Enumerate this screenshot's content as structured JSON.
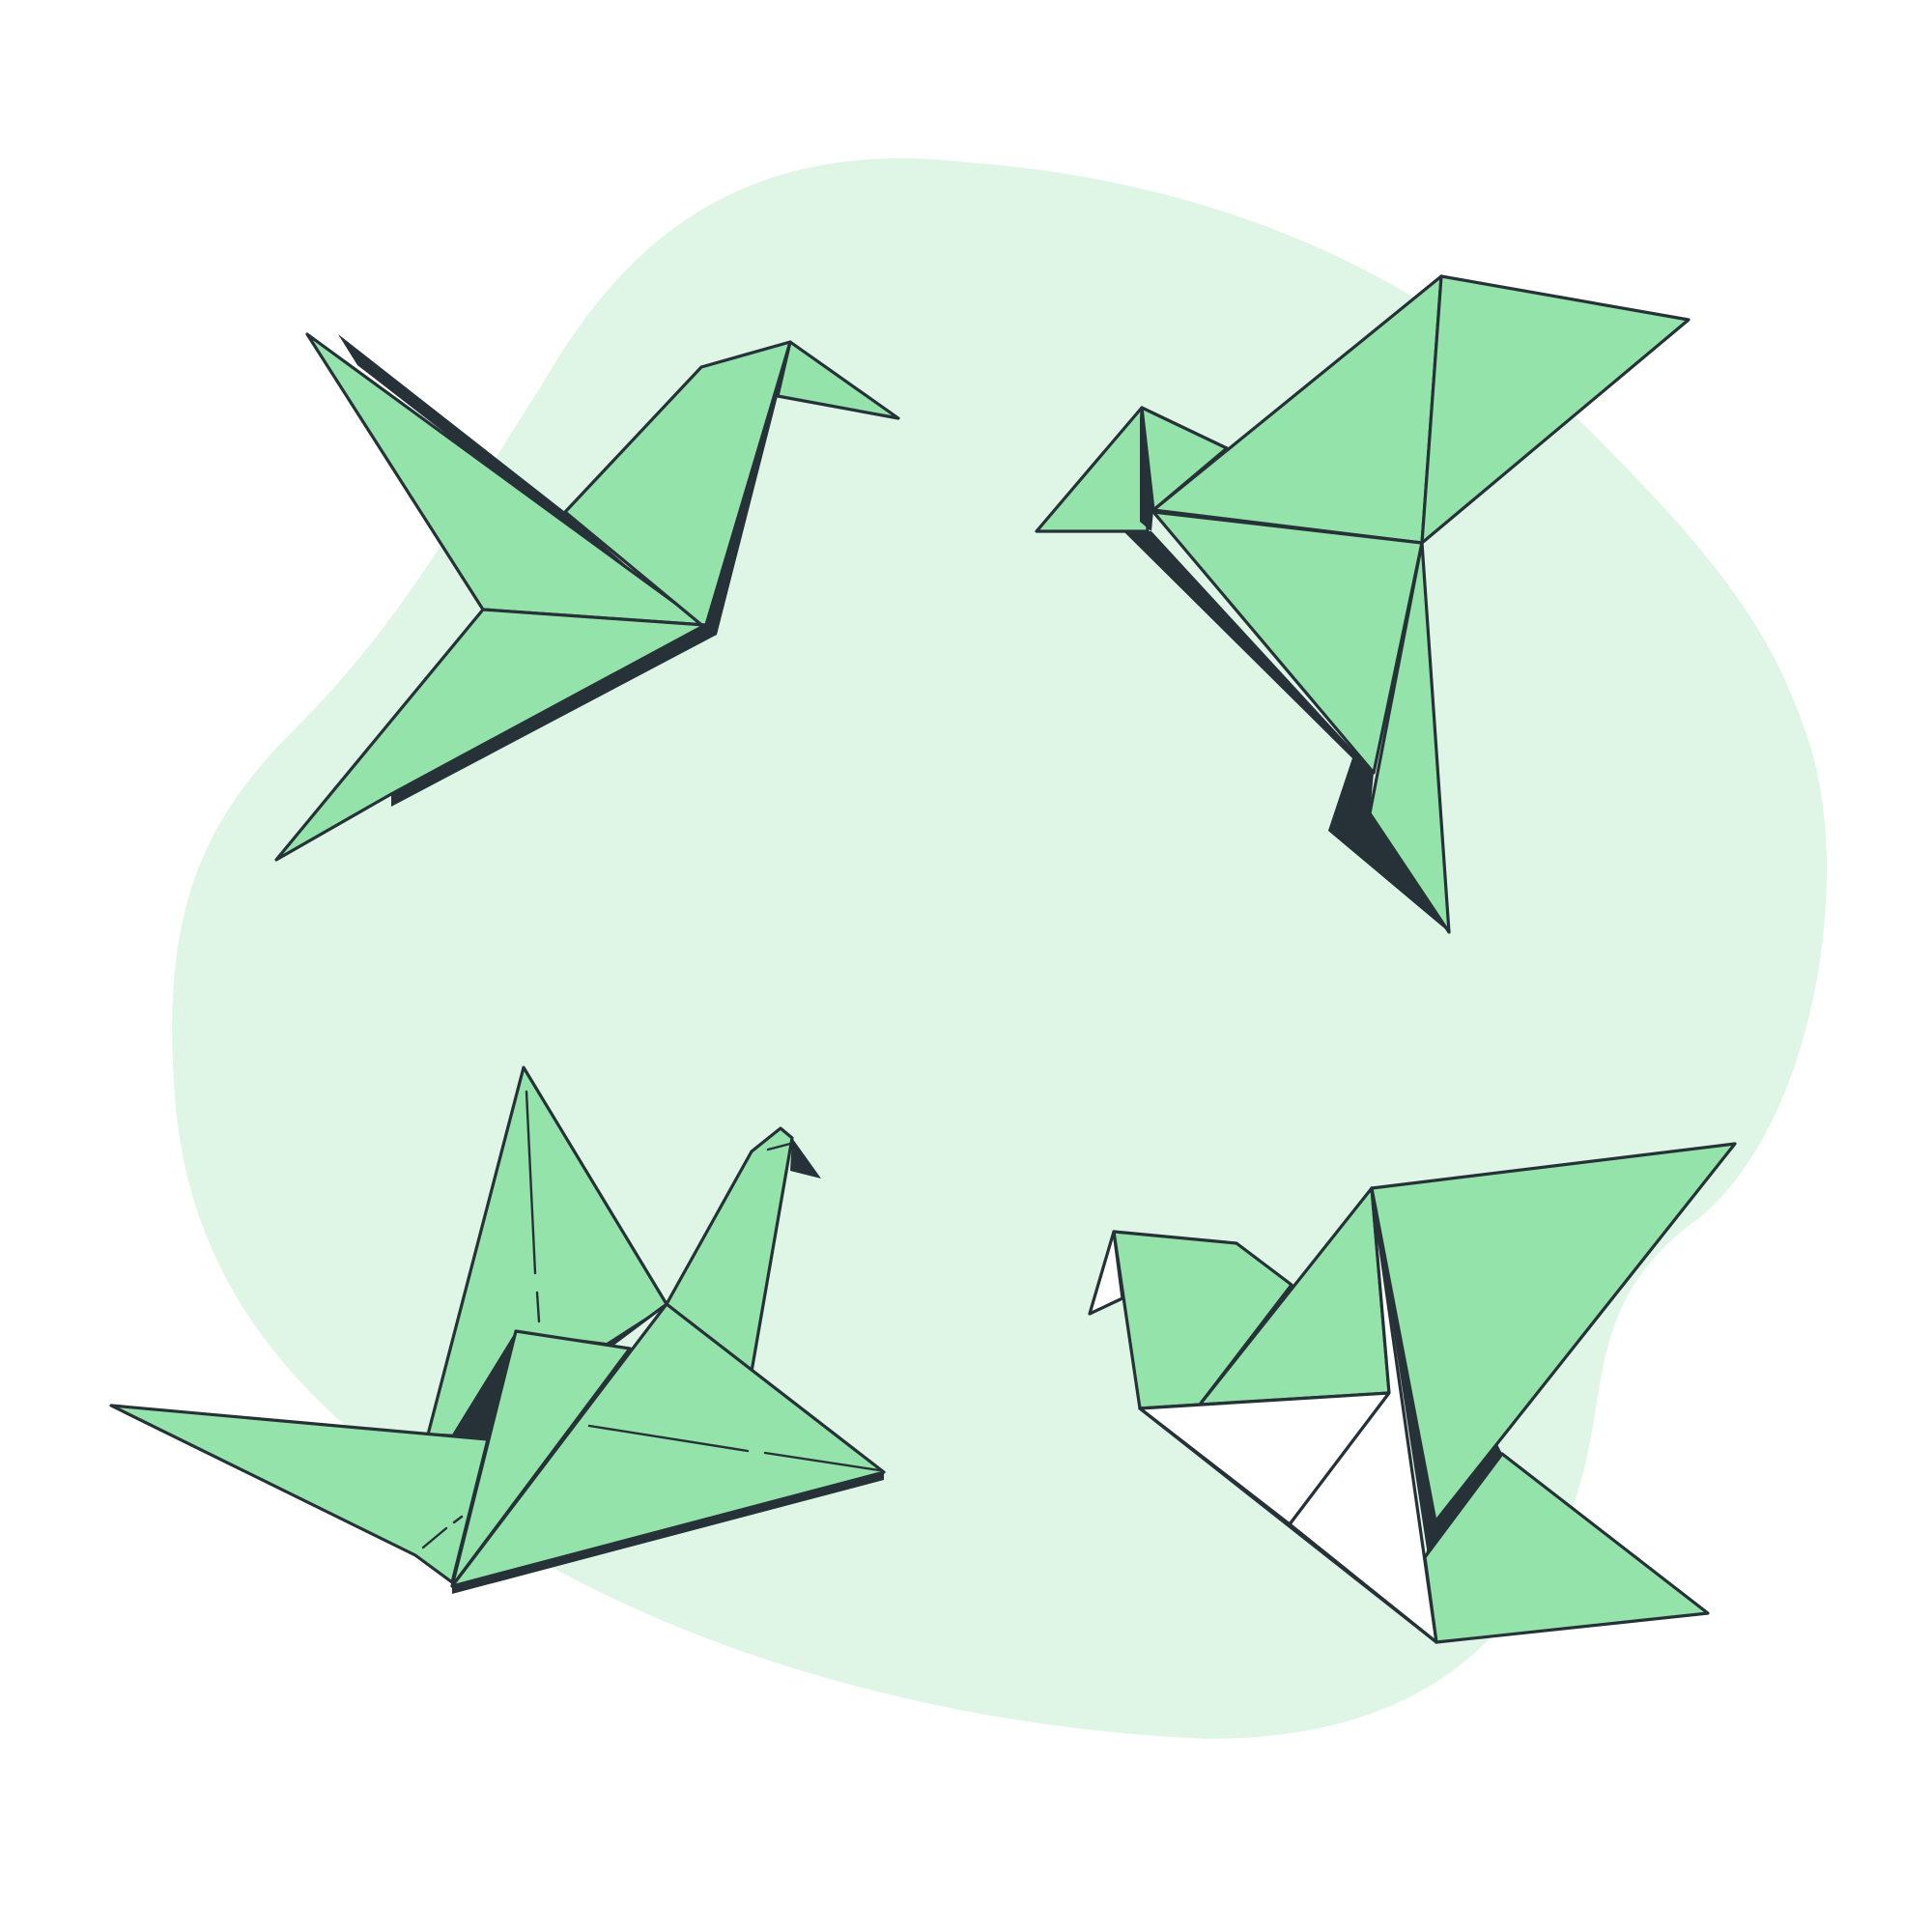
{
  "illustration": {
    "subject": "origami-birds",
    "bird_count": 4,
    "colors": {
      "background": "#ffffff",
      "blob": "#dff6e6",
      "paper": "#93e3aa",
      "shadow": "#263238",
      "outline": "#263238",
      "inner_paper": "#ffffff"
    }
  }
}
